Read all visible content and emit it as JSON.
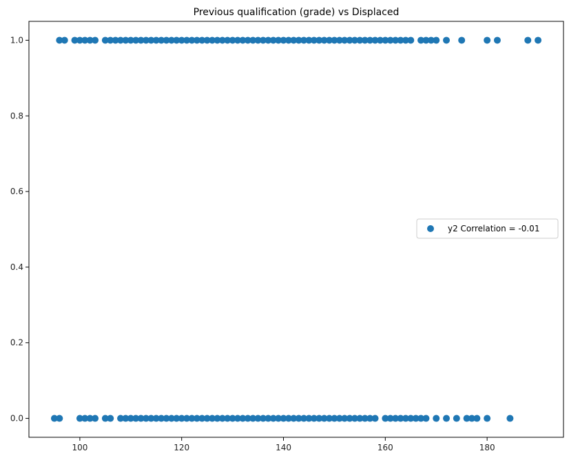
{
  "chart_data": {
    "type": "scatter",
    "title": "Previous qualification (grade) vs Displaced",
    "xlabel": "",
    "ylabel": "",
    "xlim": [
      90,
      195
    ],
    "ylim": [
      -0.05,
      1.05
    ],
    "x_ticks": [
      100,
      120,
      140,
      160,
      180
    ],
    "y_ticks": [
      0.0,
      0.2,
      0.4,
      0.6,
      0.8,
      1.0
    ],
    "x_tick_labels": [
      "100",
      "120",
      "140",
      "160",
      "180"
    ],
    "y_tick_labels": [
      "0.0",
      "0.2",
      "0.4",
      "0.6",
      "0.8",
      "1.0"
    ],
    "grid": false,
    "legend_position": "center-right",
    "series": [
      {
        "name": "y2 Correlation = -0.01",
        "color": "#1f77b4",
        "points": {
          "y1_x": [
            96,
            97,
            99,
            100,
            101,
            102,
            103,
            105,
            106,
            107,
            108,
            109,
            110,
            111,
            112,
            113,
            114,
            115,
            116,
            117,
            118,
            119,
            120,
            121,
            122,
            123,
            124,
            125,
            126,
            127,
            128,
            129,
            130,
            131,
            132,
            133,
            134,
            135,
            136,
            137,
            138,
            139,
            140,
            141,
            142,
            143,
            144,
            145,
            146,
            147,
            148,
            149,
            150,
            151,
            152,
            153,
            154,
            155,
            156,
            157,
            158,
            159,
            160,
            161,
            162,
            163,
            164,
            165,
            167,
            168,
            169,
            170,
            172,
            175,
            180,
            182,
            188,
            190
          ],
          "y0_x": [
            95,
            96,
            100,
            101,
            102,
            103,
            105,
            106,
            108,
            109,
            110,
            111,
            112,
            113,
            114,
            115,
            116,
            117,
            118,
            119,
            120,
            121,
            122,
            123,
            124,
            125,
            126,
            127,
            128,
            129,
            130,
            131,
            132,
            133,
            134,
            135,
            136,
            137,
            138,
            139,
            140,
            141,
            142,
            143,
            144,
            145,
            146,
            147,
            148,
            149,
            150,
            151,
            152,
            153,
            154,
            155,
            156,
            157,
            158,
            160,
            161,
            162,
            163,
            164,
            165,
            166,
            167,
            168,
            170,
            172,
            174,
            176,
            177,
            178,
            180,
            184.5
          ]
        }
      }
    ]
  }
}
